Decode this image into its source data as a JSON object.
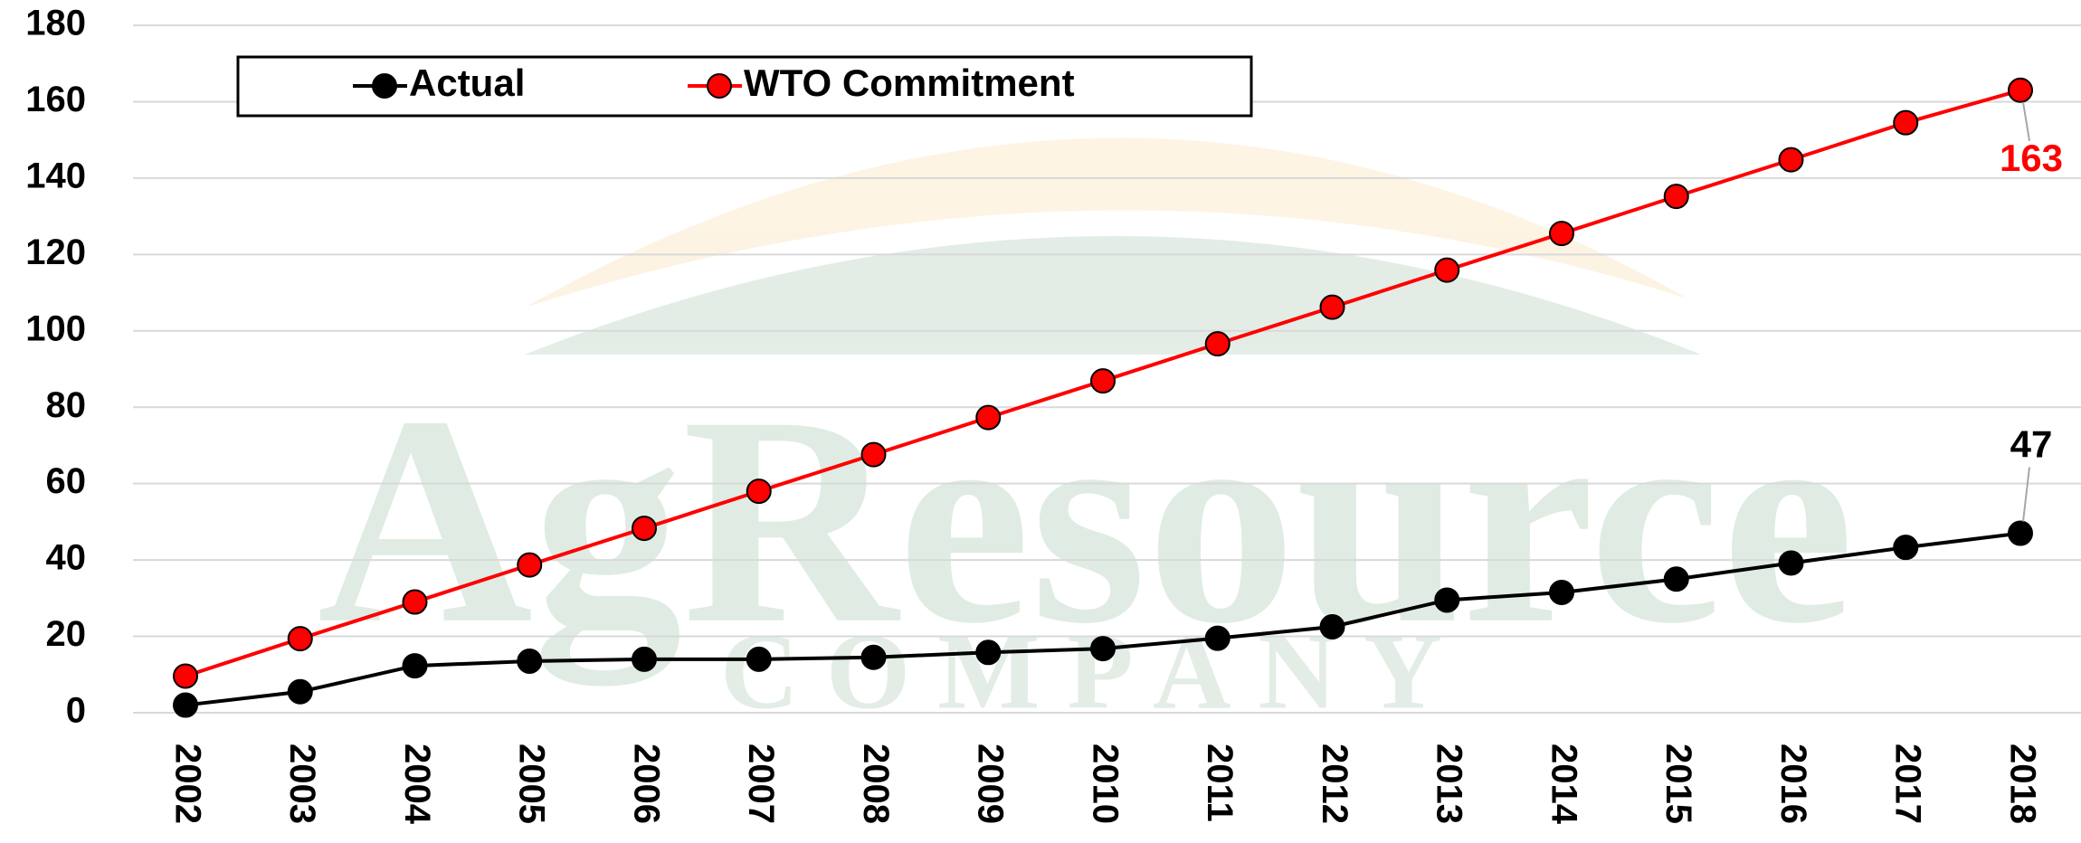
{
  "chart_data": {
    "type": "line",
    "categories": [
      "2002",
      "2003",
      "2004",
      "2005",
      "2006",
      "2007",
      "2008",
      "2009",
      "2010",
      "2011",
      "2012",
      "2013",
      "2014",
      "2015",
      "2016",
      "2017",
      "2018"
    ],
    "series": [
      {
        "name": "Actual",
        "color": "#000000",
        "values": [
          2,
          5.5,
          12.3,
          13.5,
          14,
          14,
          14.5,
          15.8,
          16.8,
          19.5,
          22.5,
          29.5,
          31.5,
          35,
          39.2,
          43.3,
          47
        ]
      },
      {
        "name": "WTO Commitment",
        "color": "#ff0000",
        "values": [
          9.6,
          19.4,
          29,
          38.7,
          48.3,
          58,
          67.6,
          77.3,
          86.9,
          96.6,
          106.2,
          115.9,
          125.5,
          135.2,
          144.8,
          154.5,
          163
        ]
      }
    ],
    "ylim": [
      0,
      180
    ],
    "yticks": [
      0,
      20,
      40,
      60,
      80,
      100,
      120,
      140,
      160,
      180
    ],
    "grid": true,
    "legend": "top-left",
    "watermark": [
      "AgResource",
      "COMPANY"
    ]
  }
}
